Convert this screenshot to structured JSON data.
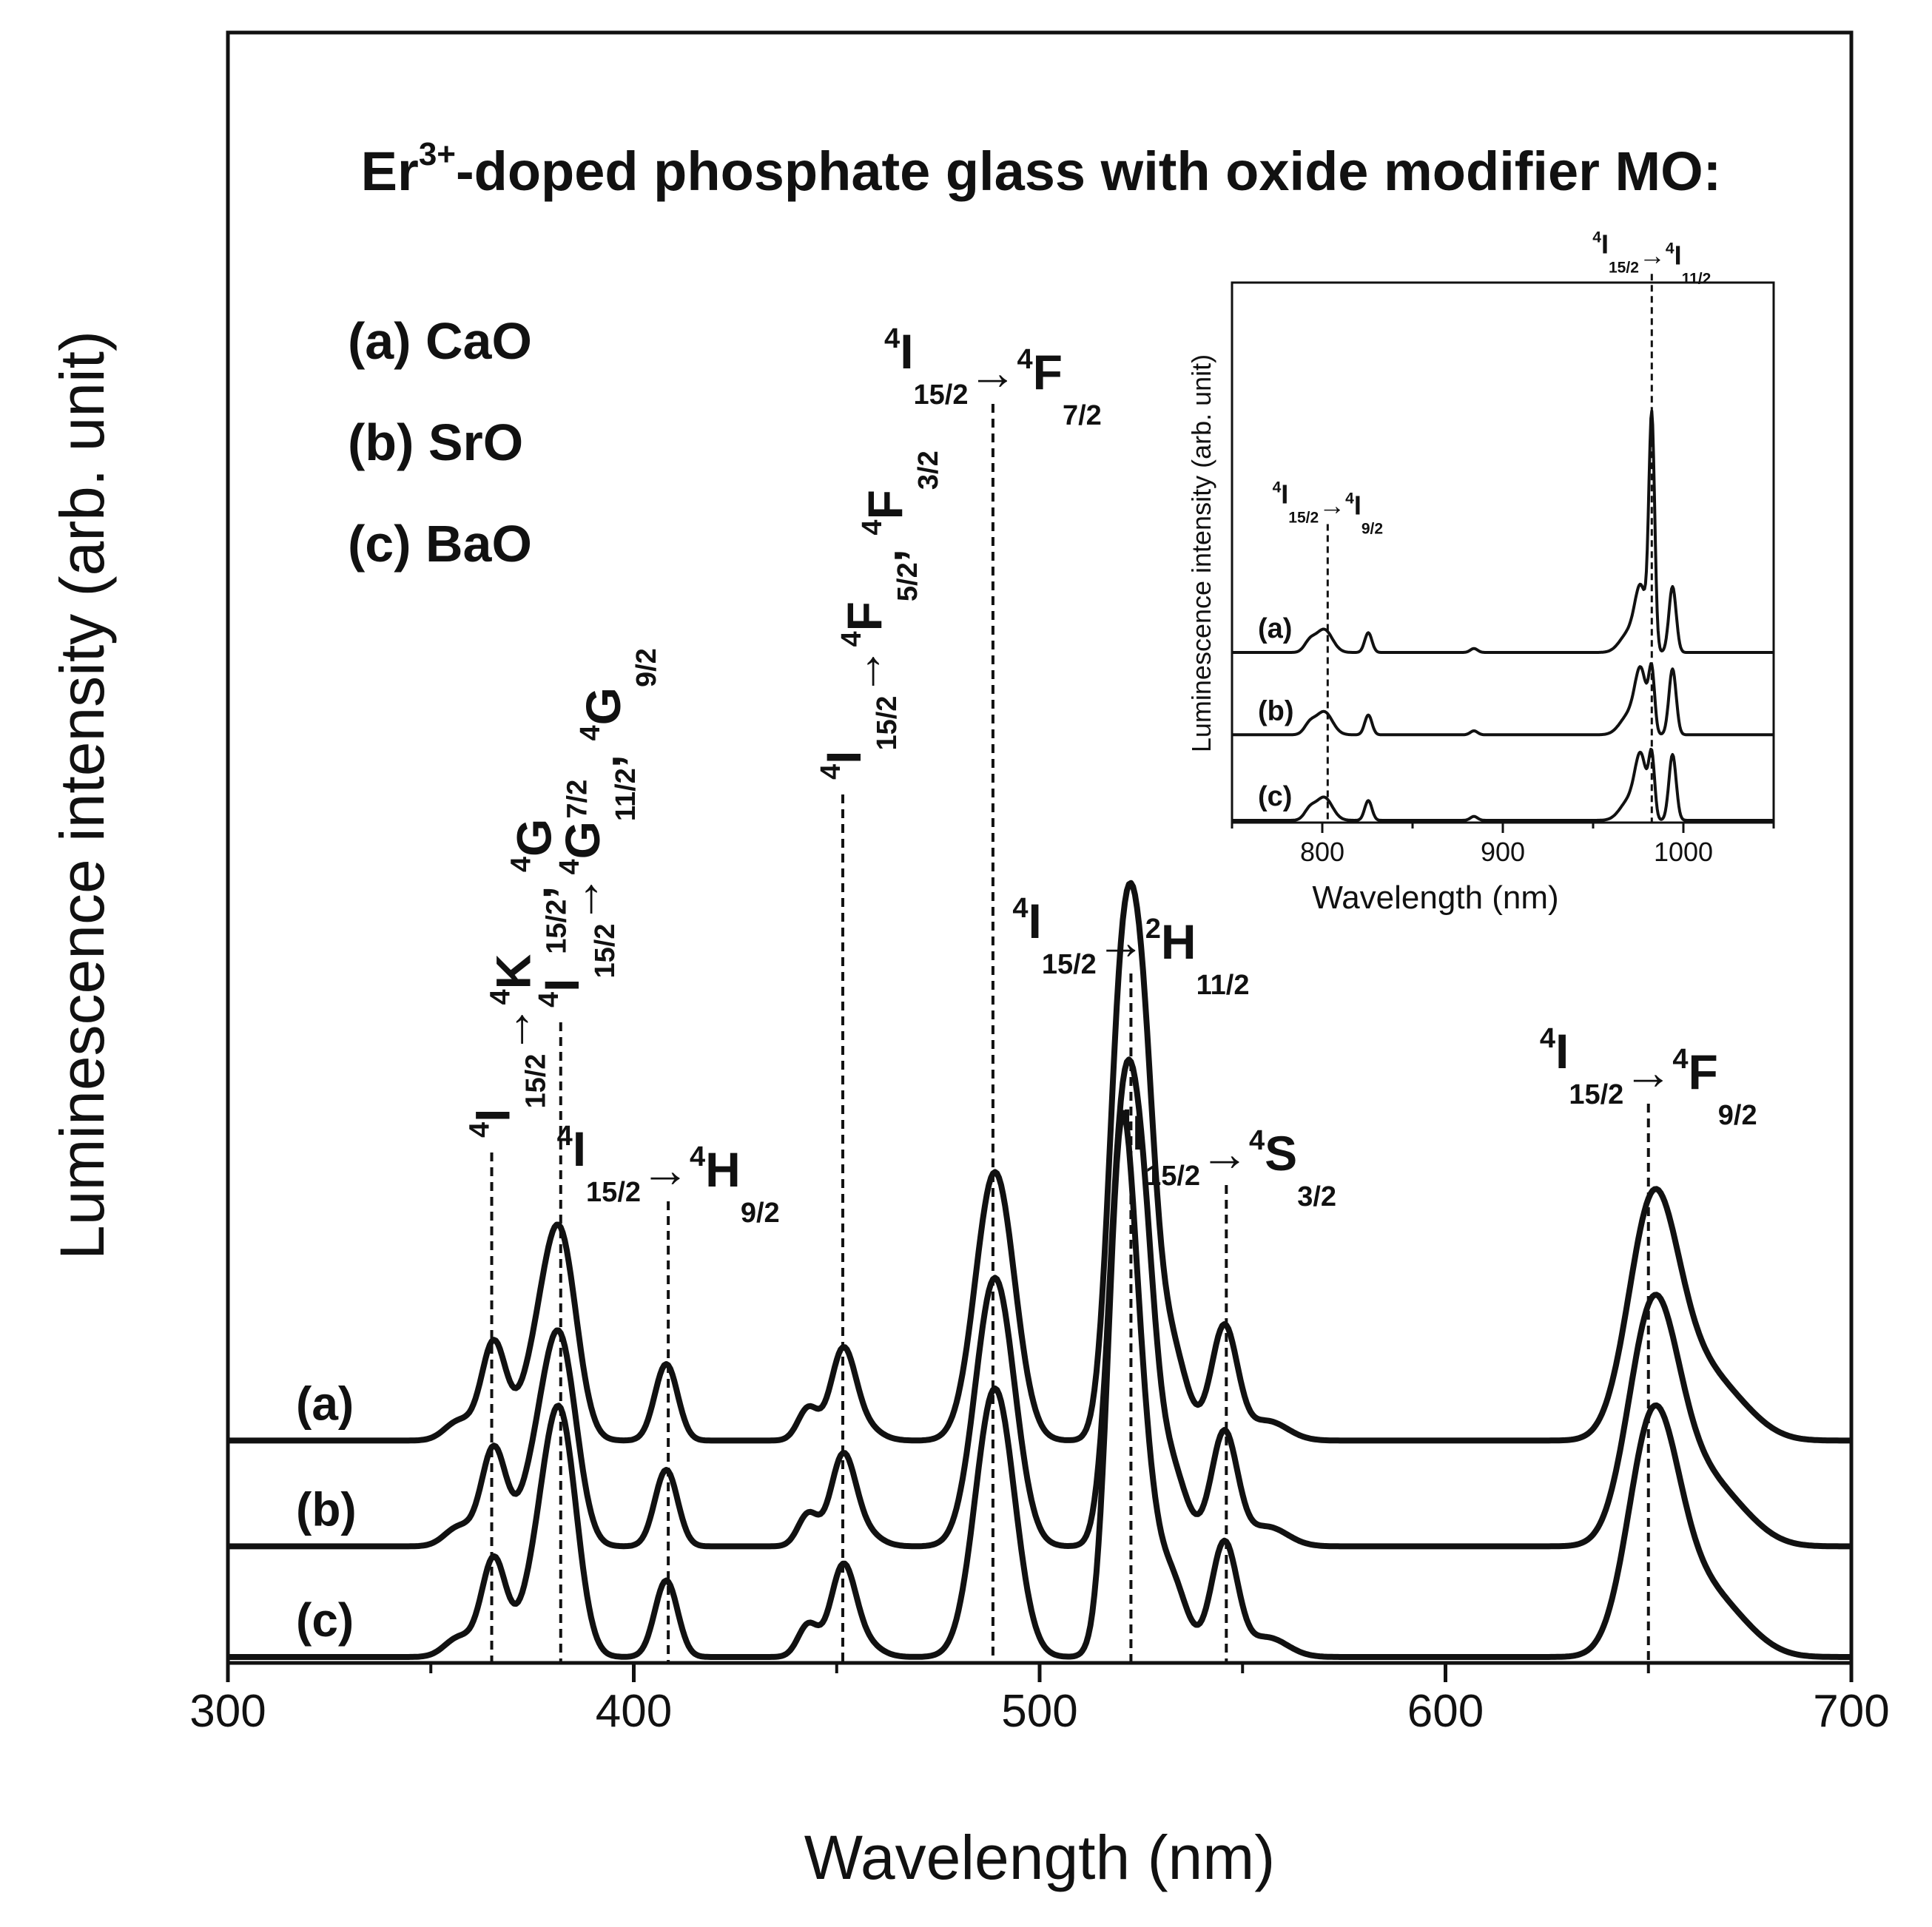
{
  "chart_data": [
    {
      "type": "line",
      "title": "Er3+-doped phosphate glass with oxide modifier MO:",
      "title_parts": {
        "base": "Er",
        "sup": "3+",
        "rest": "-doped phosphate glass with oxide modifier MO:"
      },
      "xlabel": "Wavelength (nm)",
      "ylabel": "Luminescence intensity (arb. unit)",
      "xlim": [
        300,
        700
      ],
      "ylim": [
        0,
        1
      ],
      "xticks": [
        300,
        400,
        500,
        600,
        700
      ],
      "xtick_labels": [
        "300",
        "400",
        "500",
        "600",
        "700"
      ],
      "legend_entries": [
        "(a) CaO",
        "(b) SrO",
        "(c) BaO"
      ],
      "series_labels": [
        "(a)",
        "(b)",
        "(c)"
      ],
      "series_offsets": [
        0.133,
        0.068,
        0.0
      ],
      "peaks": [
        {
          "center": 365.5,
          "width": 3.0,
          "heights": [
            0.06,
            0.06,
            0.06
          ]
        },
        {
          "center": 382,
          "width": 4.0,
          "heights": [
            0.118,
            0.118,
            0.14
          ]
        },
        {
          "center": 376,
          "width": 4.0,
          "heights": [
            0.04,
            0.04,
            0.04
          ]
        },
        {
          "center": 357,
          "width": 3.5,
          "heights": [
            0.012,
            0.012,
            0.012
          ]
        },
        {
          "center": 408,
          "width": 2.8,
          "heights": [
            0.047,
            0.047,
            0.047
          ]
        },
        {
          "center": 443,
          "width": 2.5,
          "heights": [
            0.02,
            0.02,
            0.02
          ]
        },
        {
          "center": 451.5,
          "width": 3.0,
          "heights": [
            0.052,
            0.052,
            0.052
          ]
        },
        {
          "center": 456,
          "width": 4.0,
          "heights": [
            0.01,
            0.01,
            0.01
          ]
        },
        {
          "center": 489,
          "width": 4.8,
          "heights": [
            0.165,
            0.165,
            0.165
          ]
        },
        {
          "center": 520,
          "width": 3.2,
          "heights": [
            0.24,
            0.22,
            0.3
          ]
        },
        {
          "center": 525,
          "width": 3.2,
          "heights": [
            0.22,
            0.18,
            0.1
          ]
        },
        {
          "center": 532,
          "width": 4.0,
          "heights": [
            0.06,
            0.05,
            0.05
          ]
        },
        {
          "center": 545.5,
          "width": 3.2,
          "heights": [
            0.07,
            0.07,
            0.07
          ]
        },
        {
          "center": 556,
          "width": 5.0,
          "heights": [
            0.012,
            0.012,
            0.012
          ]
        },
        {
          "center": 651,
          "width": 6.0,
          "heights": [
            0.135,
            0.135,
            0.135
          ]
        },
        {
          "center": 661,
          "width": 8.0,
          "heights": [
            0.04,
            0.04,
            0.04
          ]
        },
        {
          "center": 672,
          "width": 7.0,
          "heights": [
            0.012,
            0.012,
            0.012
          ]
        }
      ],
      "transition_markers": [
        {
          "x": 365,
          "top": 0.31,
          "orient": "vertical",
          "parts": [
            "4",
            "I",
            "15/2",
            "→",
            "4",
            "K",
            "15/2",
            ", ",
            "4",
            "G",
            "7/2"
          ]
        },
        {
          "x": 382,
          "top": 0.39,
          "orient": "vertical",
          "parts": [
            "4",
            "I",
            "15/2",
            "→",
            "4",
            "G",
            "11/2",
            ", ",
            "4",
            "G",
            "9/2"
          ]
        },
        {
          "x": 408.5,
          "top": 0.28,
          "orient": "horizontal",
          "parts": [
            "4",
            "I",
            "15/2",
            "→",
            "4",
            "H",
            "9/2"
          ]
        },
        {
          "x": 451.5,
          "top": 0.53,
          "orient": "vertical",
          "parts": [
            "4",
            "I",
            "15/2",
            "→",
            "4",
            "F",
            "5/2",
            ", ",
            "4",
            "F",
            "3/2"
          ]
        },
        {
          "x": 488.5,
          "top": 0.77,
          "orient": "horizontal",
          "parts": [
            "4",
            "I",
            "15/2",
            "→",
            "4",
            "F",
            "7/2"
          ]
        },
        {
          "x": 522.5,
          "top": 0.42,
          "orient": "horizontal",
          "parts": [
            "4",
            "I",
            "15/2",
            "→",
            "2",
            "H",
            "11/2"
          ]
        },
        {
          "x": 546,
          "top": 0.29,
          "orient": "horizontal",
          "parts": [
            "4",
            "I",
            "15/2",
            "→",
            "4",
            "S",
            "3/2"
          ]
        },
        {
          "x": 650,
          "top": 0.34,
          "orient": "horizontal",
          "parts": [
            "4",
            "I",
            "15/2",
            "→",
            "4",
            "F",
            "9/2"
          ]
        }
      ]
    },
    {
      "type": "line",
      "title": "",
      "inset": true,
      "xlabel": "Wavelength (nm)",
      "ylabel": "Luminescence intensity (arb. unit)",
      "xlim": [
        750,
        1050
      ],
      "ylim": [
        0,
        1
      ],
      "xticks": [
        800,
        900,
        1000
      ],
      "xtick_labels": [
        "800",
        "900",
        "1000"
      ],
      "series_labels": [
        "(a)",
        "(b)",
        "(c)"
      ],
      "series_offsets": [
        0.255,
        0.13,
        0.0
      ],
      "peaks": [
        {
          "center": 793,
          "width": 3.0,
          "heights": [
            0.015,
            0.015,
            0.015
          ]
        },
        {
          "center": 801,
          "width": 4.5,
          "heights": [
            0.035,
            0.035,
            0.035
          ]
        },
        {
          "center": 825.5,
          "width": 2.0,
          "heights": [
            0.03,
            0.03,
            0.03
          ]
        },
        {
          "center": 884,
          "width": 2.0,
          "heights": [
            0.006,
            0.006,
            0.006
          ]
        },
        {
          "center": 970,
          "width": 5.0,
          "heights": [
            0.03,
            0.03,
            0.03
          ]
        },
        {
          "center": 976.5,
          "width": 3.2,
          "heights": [
            0.09,
            0.09,
            0.09
          ]
        },
        {
          "center": 982.5,
          "width": 1.6,
          "heights": [
            0.35,
            0.09,
            0.09
          ]
        },
        {
          "center": 994,
          "width": 2.0,
          "heights": [
            0.1,
            0.1,
            0.1
          ]
        }
      ],
      "transition_markers": [
        {
          "x": 803,
          "top": 0.45,
          "parts": [
            "4",
            "I",
            "15/2",
            "→",
            "4",
            "I",
            "9/2"
          ]
        },
        {
          "x": 982.5,
          "top": 0.83,
          "parts": [
            "4",
            "I",
            "15/2",
            "→",
            "4",
            "I",
            "11/2"
          ]
        }
      ]
    }
  ]
}
